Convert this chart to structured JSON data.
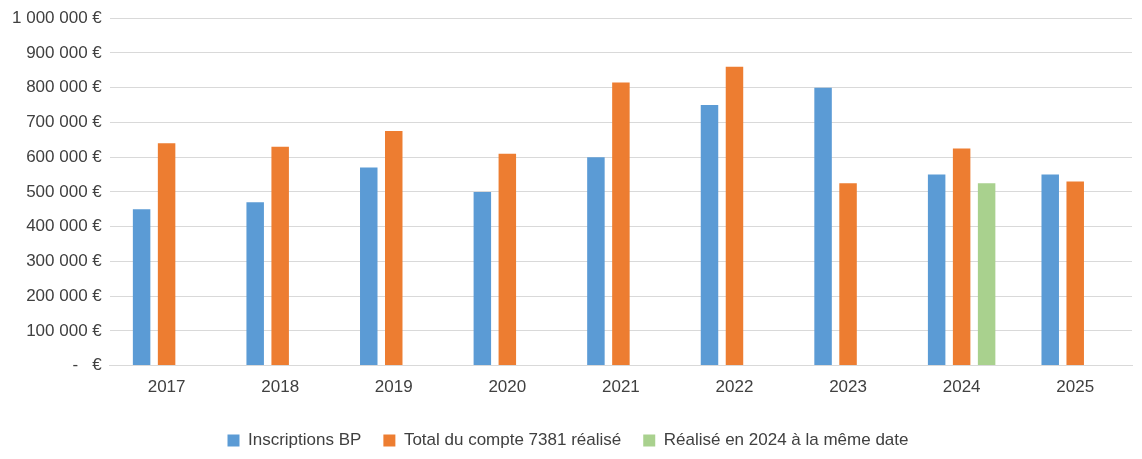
{
  "chart_data": {
    "type": "bar",
    "categories": [
      "2017",
      "2018",
      "2019",
      "2020",
      "2021",
      "2022",
      "2023",
      "2024",
      "2025"
    ],
    "series": [
      {
        "name": "Inscriptions BP",
        "color": "#5b9bd5",
        "values": [
          450000,
          470000,
          570000,
          500000,
          600000,
          750000,
          800000,
          550000,
          550000
        ]
      },
      {
        "name": "Total du compte 7381 réalisé",
        "color": "#ed7d31",
        "values": [
          640000,
          630000,
          675000,
          610000,
          815000,
          860000,
          525000,
          625000,
          530000
        ]
      },
      {
        "name": "Réalisé en 2024 à la même date",
        "color": "#a9d18e",
        "values": [
          null,
          null,
          null,
          null,
          null,
          null,
          null,
          525000,
          null
        ]
      }
    ],
    "ylim": [
      0,
      1000000
    ],
    "yticks": [
      {
        "value": 0,
        "label": "-   €"
      },
      {
        "value": 100000,
        "label": "100 000 €"
      },
      {
        "value": 200000,
        "label": "200 000 €"
      },
      {
        "value": 300000,
        "label": "300 000 €"
      },
      {
        "value": 400000,
        "label": "400 000 €"
      },
      {
        "value": 500000,
        "label": "500 000 €"
      },
      {
        "value": 600000,
        "label": "600 000 €"
      },
      {
        "value": 700000,
        "label": "700 000 €"
      },
      {
        "value": 800000,
        "label": "800 000 €"
      },
      {
        "value": 900000,
        "label": "900 000 €"
      },
      {
        "value": 1000000,
        "label": "1 000 000 €"
      }
    ],
    "grid": "y",
    "legend": "bottom"
  }
}
